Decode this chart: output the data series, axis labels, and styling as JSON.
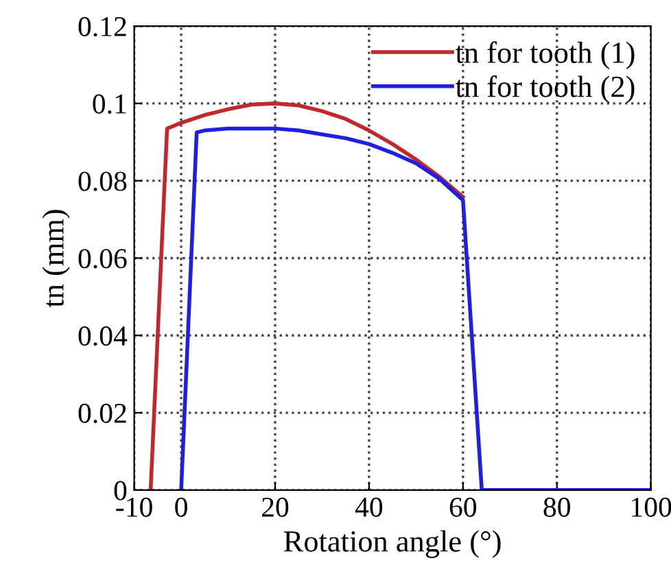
{
  "chart_data": {
    "type": "line",
    "xlabel": "Rotation angle (°)",
    "ylabel": "tn (mm)",
    "xlim": [
      -10,
      100
    ],
    "xticks": [
      -10,
      0,
      20,
      40,
      60,
      80,
      100
    ],
    "ylim": [
      0,
      0.12
    ],
    "yticks": [
      0,
      0.02,
      0.04,
      0.06,
      0.08,
      0.1,
      0.12
    ],
    "grid": true,
    "legend": "top right",
    "line_style": "solid",
    "series": [
      {
        "name": "tn for tooth (1)",
        "color": "#c0282d",
        "x": [
          -6.5,
          -3,
          0,
          5,
          10,
          15,
          20,
          25,
          30,
          35,
          40,
          45,
          50,
          55,
          60
        ],
        "values": [
          0,
          0.0935,
          0.095,
          0.097,
          0.0985,
          0.0997,
          0.1,
          0.0995,
          0.098,
          0.096,
          0.093,
          0.0895,
          0.0855,
          0.081,
          0.0758
        ]
      },
      {
        "name": "tn for tooth (2)",
        "color": "#1f1fe0",
        "x": [
          0,
          3.3,
          5,
          10,
          15,
          20,
          25,
          30,
          35,
          40,
          45,
          50,
          55,
          60,
          64,
          100
        ],
        "values": [
          0,
          0.0925,
          0.093,
          0.0935,
          0.0935,
          0.0935,
          0.093,
          0.092,
          0.091,
          0.0895,
          0.0872,
          0.0845,
          0.0805,
          0.075,
          0,
          0
        ]
      }
    ]
  }
}
